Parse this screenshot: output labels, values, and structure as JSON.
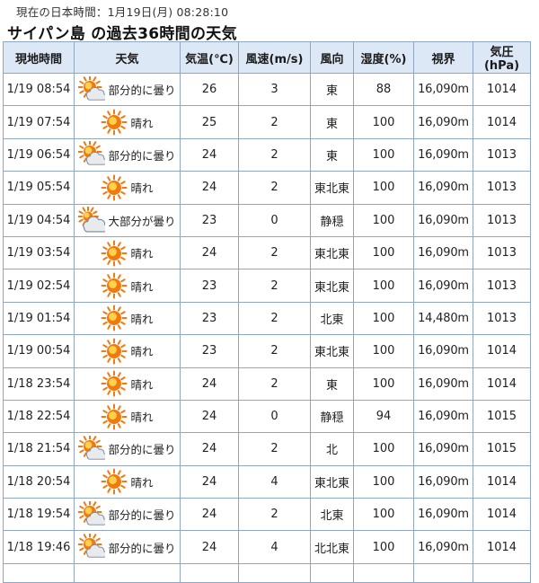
{
  "clock": "現在の日本時間：1月19日(月) 08:28:10",
  "title": "サイパン島 の過去36時間の天気",
  "headers": [
    "現地時間",
    "天気",
    "気温(℃)",
    "風速(m/s)",
    "風向",
    "湿度(%)",
    "視界",
    "気圧(hPa)"
  ],
  "icon_colors": {
    "sun": "#f07a10",
    "sun_center": "#ffd24a",
    "cloud": "#e8eaee",
    "cloud_edge": "#7b8799"
  },
  "rows": [
    {
      "time": "1/19 08:54",
      "icon": "partly-cloudy-icon",
      "condition": "部分的に曇り",
      "temp": "26",
      "wind_speed": "3",
      "wind_dir": "東",
      "humidity": "88",
      "visibility": "16,090m",
      "pressure": "1014"
    },
    {
      "time": "1/19 07:54",
      "icon": "sunny-icon",
      "condition": "晴れ",
      "temp": "25",
      "wind_speed": "2",
      "wind_dir": "東",
      "humidity": "100",
      "visibility": "16,090m",
      "pressure": "1014"
    },
    {
      "time": "1/19 06:54",
      "icon": "partly-cloudy-icon",
      "condition": "部分的に曇り",
      "temp": "24",
      "wind_speed": "2",
      "wind_dir": "東",
      "humidity": "100",
      "visibility": "16,090m",
      "pressure": "1013"
    },
    {
      "time": "1/19 05:54",
      "icon": "sunny-icon",
      "condition": "晴れ",
      "temp": "24",
      "wind_speed": "2",
      "wind_dir": "東北東",
      "humidity": "100",
      "visibility": "16,090m",
      "pressure": "1013"
    },
    {
      "time": "1/19 04:54",
      "icon": "mostly-cloudy-icon",
      "condition": "大部分が曇り",
      "temp": "23",
      "wind_speed": "0",
      "wind_dir": "静穏",
      "humidity": "100",
      "visibility": "16,090m",
      "pressure": "1013"
    },
    {
      "time": "1/19 03:54",
      "icon": "sunny-icon",
      "condition": "晴れ",
      "temp": "24",
      "wind_speed": "2",
      "wind_dir": "東北東",
      "humidity": "100",
      "visibility": "16,090m",
      "pressure": "1013"
    },
    {
      "time": "1/19 02:54",
      "icon": "sunny-icon",
      "condition": "晴れ",
      "temp": "23",
      "wind_speed": "2",
      "wind_dir": "東北東",
      "humidity": "100",
      "visibility": "16,090m",
      "pressure": "1013"
    },
    {
      "time": "1/19 01:54",
      "icon": "sunny-icon",
      "condition": "晴れ",
      "temp": "23",
      "wind_speed": "2",
      "wind_dir": "北東",
      "humidity": "100",
      "visibility": "14,480m",
      "pressure": "1013"
    },
    {
      "time": "1/19 00:54",
      "icon": "sunny-icon",
      "condition": "晴れ",
      "temp": "23",
      "wind_speed": "2",
      "wind_dir": "東北東",
      "humidity": "100",
      "visibility": "16,090m",
      "pressure": "1014"
    },
    {
      "time": "1/18 23:54",
      "icon": "sunny-icon",
      "condition": "晴れ",
      "temp": "24",
      "wind_speed": "2",
      "wind_dir": "東",
      "humidity": "100",
      "visibility": "16,090m",
      "pressure": "1014"
    },
    {
      "time": "1/18 22:54",
      "icon": "sunny-icon",
      "condition": "晴れ",
      "temp": "24",
      "wind_speed": "0",
      "wind_dir": "静穏",
      "humidity": "94",
      "visibility": "16,090m",
      "pressure": "1015"
    },
    {
      "time": "1/18 21:54",
      "icon": "partly-cloudy-icon",
      "condition": "部分的に曇り",
      "temp": "24",
      "wind_speed": "2",
      "wind_dir": "北",
      "humidity": "100",
      "visibility": "16,090m",
      "pressure": "1015"
    },
    {
      "time": "1/18 20:54",
      "icon": "sunny-icon",
      "condition": "晴れ",
      "temp": "24",
      "wind_speed": "4",
      "wind_dir": "東北東",
      "humidity": "100",
      "visibility": "16,090m",
      "pressure": "1014"
    },
    {
      "time": "1/18 19:54",
      "icon": "partly-cloudy-icon",
      "condition": "部分的に曇り",
      "temp": "24",
      "wind_speed": "2",
      "wind_dir": "北東",
      "humidity": "100",
      "visibility": "16,090m",
      "pressure": "1014"
    },
    {
      "time": "1/18 19:46",
      "icon": "partly-cloudy-icon",
      "condition": "部分的に曇り",
      "temp": "24",
      "wind_speed": "4",
      "wind_dir": "北北東",
      "humidity": "100",
      "visibility": "16,090m",
      "pressure": "1014"
    }
  ]
}
